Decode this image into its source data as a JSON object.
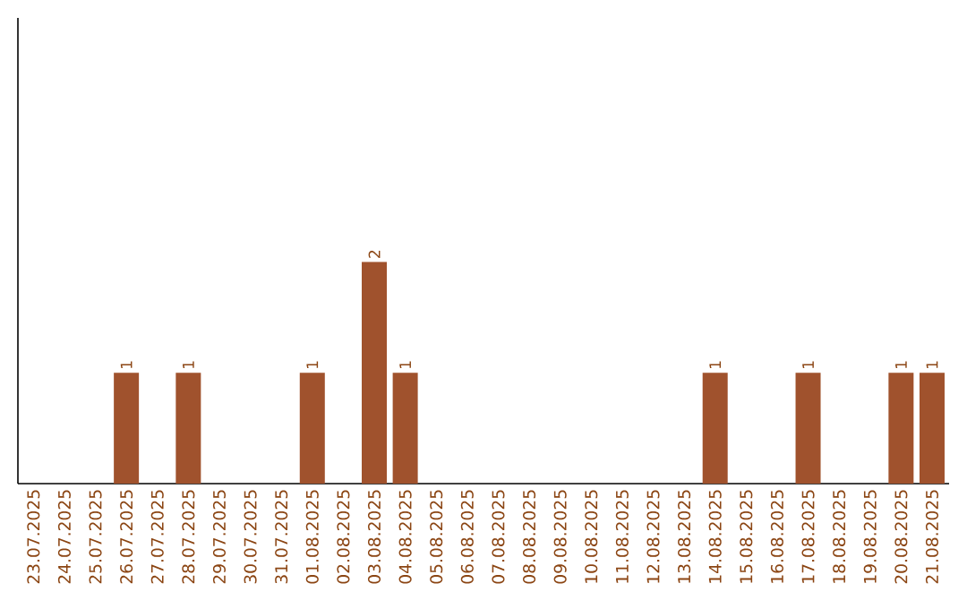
{
  "chart_data": {
    "type": "bar",
    "categories": [
      "23.07.2025",
      "24.07.2025",
      "25.07.2025",
      "26.07.2025",
      "27.07.2025",
      "28.07.2025",
      "29.07.2025",
      "30.07.2025",
      "31.07.2025",
      "01.08.2025",
      "02.08.2025",
      "03.08.2025",
      "04.08.2025",
      "05.08.2025",
      "06.08.2025",
      "07.08.2025",
      "08.08.2025",
      "09.08.2025",
      "10.08.2025",
      "11.08.2025",
      "12.08.2025",
      "13.08.2025",
      "14.08.2025",
      "15.08.2025",
      "16.08.2025",
      "17.08.2025",
      "18.08.2025",
      "19.08.2025",
      "20.08.2025",
      "21.08.2025"
    ],
    "values": [
      0,
      0,
      0,
      1,
      0,
      1,
      0,
      0,
      0,
      1,
      0,
      2,
      1,
      0,
      0,
      0,
      0,
      0,
      0,
      0,
      0,
      0,
      1,
      0,
      0,
      1,
      0,
      0,
      1,
      1
    ],
    "value_labels": [
      null,
      null,
      null,
      "1",
      null,
      "1",
      null,
      null,
      null,
      "1",
      null,
      "2",
      "1",
      null,
      null,
      null,
      null,
      null,
      null,
      null,
      null,
      null,
      "1",
      null,
      null,
      "1",
      null,
      null,
      "1",
      "1"
    ],
    "color": "#a0522d",
    "ylim": [
      0,
      4.2
    ],
    "tick_labels": "x"
  }
}
